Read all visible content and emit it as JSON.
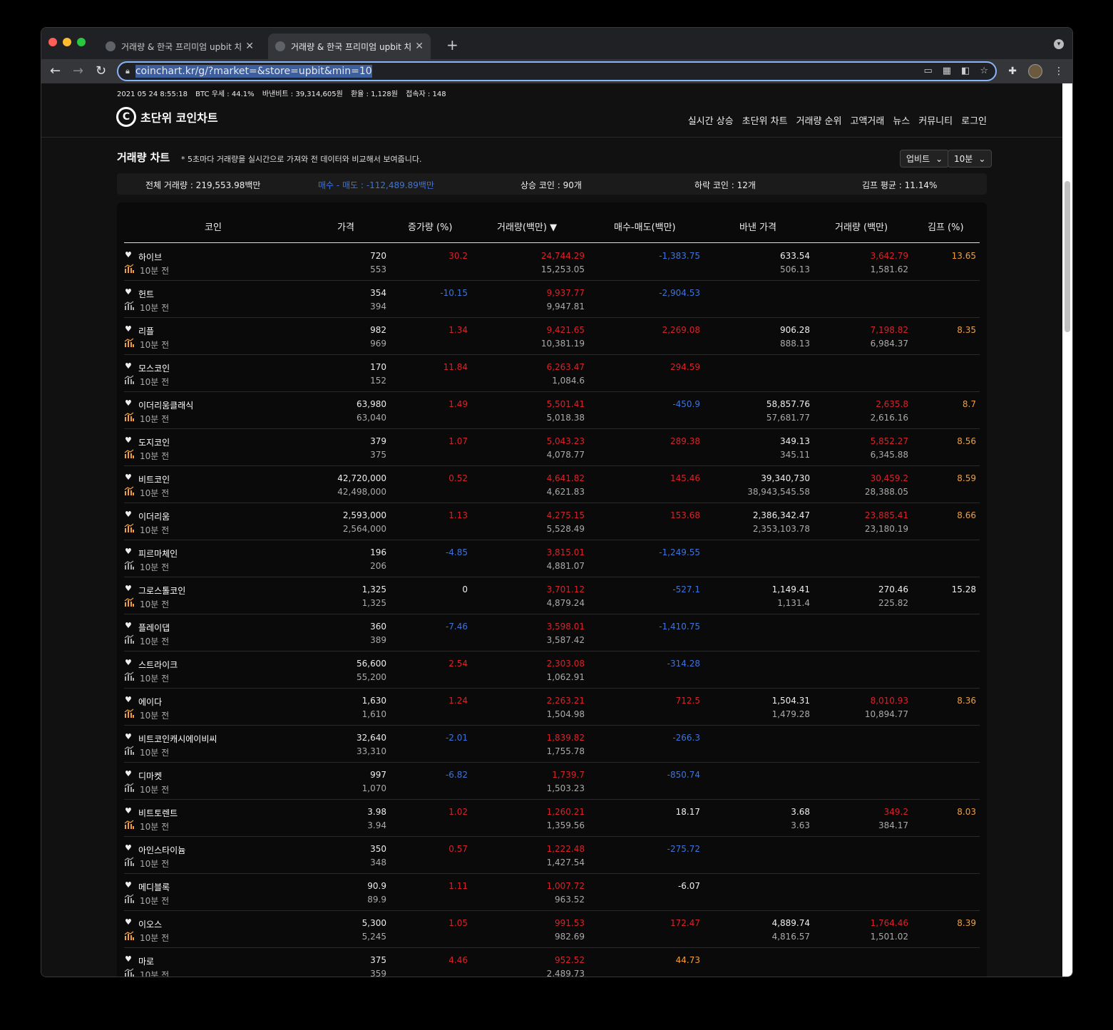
{
  "browser": {
    "tabs": [
      {
        "title": "거래량 & 한국 프리미엄 upbit 차트 |",
        "active": false
      },
      {
        "title": "거래량 & 한국 프리미엄 upbit 차트 |",
        "active": true
      }
    ],
    "url": "coinchart.kr/g/?market=&store=upbit&min=10"
  },
  "statusline": {
    "datetime": "2021 05 24 8:55:18",
    "btc": "BTC 우세 : 44.1%",
    "binance": "바낸비트 : 39,314,605원",
    "fx": "환율 : 1,128원",
    "users": "접속자 : 148"
  },
  "header": {
    "logo_mark": "C",
    "logo_text": "초단위 코인차트",
    "nav": [
      "실시간 상승",
      "초단위 차트",
      "거래량 순위",
      "고액거래",
      "뉴스",
      "커뮤니티",
      "로그인"
    ]
  },
  "section": {
    "title": "거래량 차트",
    "subtitle": "* 5초마다 거래량을 실시간으로 가져와 전 데이터와 비교해서 보여줍니다.",
    "exchange_select": "업비트",
    "interval_select": "10분"
  },
  "summary": {
    "total": "전체 거래량 : 219,553.98백만",
    "buysell_label": "매수 - 매도 :",
    "buysell_value": "-112,489.89백만",
    "rising": "상승 코인 : 90개",
    "falling": "하락 코인 : 12개",
    "kimp": "김프 평균 : 11.14%"
  },
  "columns": [
    "코인",
    "가격",
    "증가량 (%)",
    "거래량(백만) ▼",
    "매수-매도(백만)",
    "바낸 가격",
    "거래량 (백만)",
    "김프 (%)"
  ],
  "ago_label": "10분 전",
  "colors": {
    "red": "#d7232b",
    "blue": "#3f74d8",
    "orange": "#f0a03c",
    "chart_orange": "#f0a03c",
    "chart_gray": "#aaaaaa"
  },
  "rows": [
    {
      "name": "하이브",
      "price": "720",
      "price_prev": "553",
      "inc": "30.2",
      "inc_c": "red",
      "vol": "24,744.29",
      "vol_prev": "15,253.05",
      "bs": "-1,383.75",
      "bs_c": "blu",
      "bn": "633.54",
      "bn_prev": "506.13",
      "bnv": "3,642.79",
      "bnv_c": "red",
      "bnv_prev": "1,581.62",
      "kimp": "13.65",
      "icon": "orange"
    },
    {
      "name": "헌트",
      "price": "354",
      "price_prev": "394",
      "inc": "-10.15",
      "inc_c": "blu",
      "vol": "9,937.77",
      "vol_prev": "9,947.81",
      "bs": "-2,904.53",
      "bs_c": "blu",
      "bn": "",
      "bn_prev": "",
      "bnv": "",
      "bnv_c": "w",
      "bnv_prev": "",
      "kimp": "",
      "icon": "gray"
    },
    {
      "name": "리플",
      "price": "982",
      "price_prev": "969",
      "inc": "1.34",
      "inc_c": "red",
      "vol": "9,421.65",
      "vol_prev": "10,381.19",
      "bs": "2,269.08",
      "bs_c": "red",
      "bn": "906.28",
      "bn_prev": "888.13",
      "bnv": "7,198.82",
      "bnv_c": "red",
      "bnv_prev": "6,984.37",
      "kimp": "8.35",
      "icon": "orange"
    },
    {
      "name": "모스코인",
      "price": "170",
      "price_prev": "152",
      "inc": "11.84",
      "inc_c": "red",
      "vol": "6,263.47",
      "vol_prev": "1,084.6",
      "bs": "294.59",
      "bs_c": "red",
      "bn": "",
      "bn_prev": "",
      "bnv": "",
      "bnv_c": "w",
      "bnv_prev": "",
      "kimp": "",
      "icon": "gray"
    },
    {
      "name": "이더리움클래식",
      "price": "63,980",
      "price_prev": "63,040",
      "inc": "1.49",
      "inc_c": "red",
      "vol": "5,501.41",
      "vol_prev": "5,018.38",
      "bs": "-450.9",
      "bs_c": "blu",
      "bn": "58,857.76",
      "bn_prev": "57,681.77",
      "bnv": "2,635.8",
      "bnv_c": "red",
      "bnv_prev": "2,616.16",
      "kimp": "8.7",
      "icon": "orange"
    },
    {
      "name": "도지코인",
      "price": "379",
      "price_prev": "375",
      "inc": "1.07",
      "inc_c": "red",
      "vol": "5,043.23",
      "vol_prev": "4,078.77",
      "bs": "289.38",
      "bs_c": "red",
      "bn": "349.13",
      "bn_prev": "345.11",
      "bnv": "5,852.27",
      "bnv_c": "red",
      "bnv_prev": "6,345.88",
      "kimp": "8.56",
      "icon": "orange"
    },
    {
      "name": "비트코인",
      "price": "42,720,000",
      "price_prev": "42,498,000",
      "inc": "0.52",
      "inc_c": "red",
      "vol": "4,641.82",
      "vol_prev": "4,621.83",
      "bs": "145.46",
      "bs_c": "red",
      "bn": "39,340,730",
      "bn_prev": "38,943,545.58",
      "bnv": "30,459.2",
      "bnv_c": "red",
      "bnv_prev": "28,388.05",
      "kimp": "8.59",
      "icon": "orange"
    },
    {
      "name": "이더리움",
      "price": "2,593,000",
      "price_prev": "2,564,000",
      "inc": "1.13",
      "inc_c": "red",
      "vol": "4,275.15",
      "vol_prev": "5,528.49",
      "bs": "153.68",
      "bs_c": "red",
      "bn": "2,386,342.47",
      "bn_prev": "2,353,103.78",
      "bnv": "23,885.41",
      "bnv_c": "red",
      "bnv_prev": "23,180.19",
      "kimp": "8.66",
      "icon": "orange"
    },
    {
      "name": "피르마체인",
      "price": "196",
      "price_prev": "206",
      "inc": "-4.85",
      "inc_c": "blu",
      "vol": "3,815.01",
      "vol_prev": "4,881.07",
      "bs": "-1,249.55",
      "bs_c": "blu",
      "bn": "",
      "bn_prev": "",
      "bnv": "",
      "bnv_c": "w",
      "bnv_prev": "",
      "kimp": "",
      "icon": "gray"
    },
    {
      "name": "그로스톨코인",
      "price": "1,325",
      "price_prev": "1,325",
      "inc": "0",
      "inc_c": "w",
      "vol": "3,701.12",
      "vol_prev": "4,879.24",
      "bs": "-527.1",
      "bs_c": "blu",
      "bn": "1,149.41",
      "bn_prev": "1,131.4",
      "bnv": "270.46",
      "bnv_c": "w",
      "bnv_prev": "225.82",
      "kimp": "15.28",
      "icon": "orange"
    },
    {
      "name": "플레이댑",
      "price": "360",
      "price_prev": "389",
      "inc": "-7.46",
      "inc_c": "blu",
      "vol": "3,598.01",
      "vol_prev": "3,587.42",
      "bs": "-1,410.75",
      "bs_c": "blu",
      "bn": "",
      "bn_prev": "",
      "bnv": "",
      "bnv_c": "w",
      "bnv_prev": "",
      "kimp": "",
      "icon": "gray"
    },
    {
      "name": "스트라이크",
      "price": "56,600",
      "price_prev": "55,200",
      "inc": "2.54",
      "inc_c": "red",
      "vol": "2,303.08",
      "vol_prev": "1,062.91",
      "bs": "-314.28",
      "bs_c": "blu",
      "bn": "",
      "bn_prev": "",
      "bnv": "",
      "bnv_c": "w",
      "bnv_prev": "",
      "kimp": "",
      "icon": "gray"
    },
    {
      "name": "에이다",
      "price": "1,630",
      "price_prev": "1,610",
      "inc": "1.24",
      "inc_c": "red",
      "vol": "2,263.21",
      "vol_prev": "1,504.98",
      "bs": "712.5",
      "bs_c": "red",
      "bn": "1,504.31",
      "bn_prev": "1,479.28",
      "bnv": "8,010.93",
      "bnv_c": "red",
      "bnv_prev": "10,894.77",
      "kimp": "8.36",
      "icon": "orange"
    },
    {
      "name": "비트코인캐시에이비씨",
      "price": "32,640",
      "price_prev": "33,310",
      "inc": "-2.01",
      "inc_c": "blu",
      "vol": "1,839.82",
      "vol_prev": "1,755.78",
      "bs": "-266.3",
      "bs_c": "blu",
      "bn": "",
      "bn_prev": "",
      "bnv": "",
      "bnv_c": "w",
      "bnv_prev": "",
      "kimp": "",
      "icon": "gray"
    },
    {
      "name": "디마켓",
      "price": "997",
      "price_prev": "1,070",
      "inc": "-6.82",
      "inc_c": "blu",
      "vol": "1,739.7",
      "vol_prev": "1,503.23",
      "bs": "-850.74",
      "bs_c": "blu",
      "bn": "",
      "bn_prev": "",
      "bnv": "",
      "bnv_c": "w",
      "bnv_prev": "",
      "kimp": "",
      "icon": "gray"
    },
    {
      "name": "비트토렌트",
      "price": "3.98",
      "price_prev": "3.94",
      "inc": "1.02",
      "inc_c": "red",
      "vol": "1,260.21",
      "vol_prev": "1,359.56",
      "bs": "18.17",
      "bs_c": "w",
      "bn": "3.68",
      "bn_prev": "3.63",
      "bnv": "349.2",
      "bnv_c": "red",
      "bnv_prev": "384.17",
      "kimp": "8.03",
      "icon": "orange"
    },
    {
      "name": "아인스타이늄",
      "price": "350",
      "price_prev": "348",
      "inc": "0.57",
      "inc_c": "red",
      "vol": "1,222.48",
      "vol_prev": "1,427.54",
      "bs": "-275.72",
      "bs_c": "blu",
      "bn": "",
      "bn_prev": "",
      "bnv": "",
      "bnv_c": "w",
      "bnv_prev": "",
      "kimp": "",
      "icon": "gray"
    },
    {
      "name": "메디블록",
      "price": "90.9",
      "price_prev": "89.9",
      "inc": "1.11",
      "inc_c": "red",
      "vol": "1,007.72",
      "vol_prev": "963.52",
      "bs": "-6.07",
      "bs_c": "w",
      "bn": "",
      "bn_prev": "",
      "bnv": "",
      "bnv_c": "w",
      "bnv_prev": "",
      "kimp": "",
      "icon": "gray"
    },
    {
      "name": "이오스",
      "price": "5,300",
      "price_prev": "5,245",
      "inc": "1.05",
      "inc_c": "red",
      "vol": "991.53",
      "vol_prev": "982.69",
      "bs": "172.47",
      "bs_c": "red",
      "bn": "4,889.74",
      "bn_prev": "4,816.57",
      "bnv": "1,764.46",
      "bnv_c": "red",
      "bnv_prev": "1,501.02",
      "kimp": "8.39",
      "icon": "orange"
    },
    {
      "name": "마로",
      "price": "375",
      "price_prev": "359",
      "inc": "4.46",
      "inc_c": "red",
      "vol": "952.52",
      "vol_prev": "2,489.73",
      "bs": "44.73",
      "bs_c": "org",
      "bn": "",
      "bn_prev": "",
      "bnv": "",
      "bnv_c": "w",
      "bnv_prev": "",
      "kimp": "",
      "icon": "gray"
    }
  ]
}
